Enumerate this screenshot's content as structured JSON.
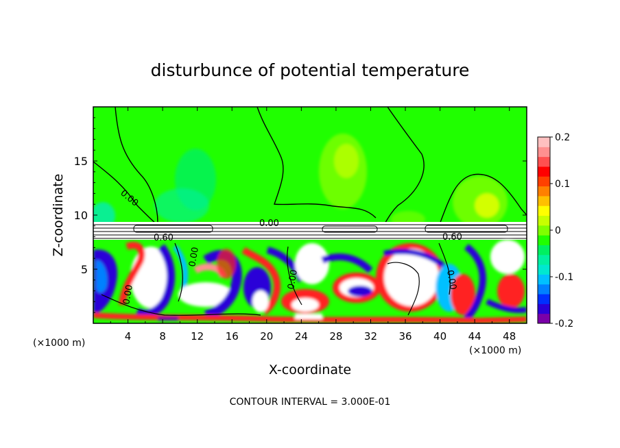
{
  "chart_data": {
    "type": "heatmap",
    "title": "disturbunce of potential temperature",
    "xlabel": "X-coordinate",
    "ylabel": "Z-coordinate",
    "x_unit": "(×1000 m)",
    "x_ticks": [
      "4",
      "8",
      "12",
      "16",
      "20",
      "24",
      "28",
      "32",
      "36",
      "40",
      "44",
      "48"
    ],
    "y_ticks": [
      "5",
      "10",
      "15"
    ],
    "xlim": [
      0,
      50
    ],
    "ylim": [
      0,
      20
    ],
    "colorbar": {
      "ticks": [
        "0.2",
        "0.1",
        "0",
        "-0.1",
        "-0.2"
      ],
      "range": [
        -0.2,
        0.2
      ],
      "colors": [
        "#7a00a8",
        "#2a00d8",
        "#0030ff",
        "#0080ff",
        "#00c0ff",
        "#00e8d0",
        "#00f0a0",
        "#00f060",
        "#20ff00",
        "#80ff00",
        "#c8ff00",
        "#ffff00",
        "#ffc000",
        "#ff8000",
        "#ff4000",
        "#ff0000",
        "#ff5050",
        "#ff9090",
        "#ffc0c0"
      ]
    },
    "contour_labels": [
      "0.00",
      "0.00",
      "0.00",
      "0.00",
      "0.00",
      "0.60",
      "0.60",
      "0.00"
    ],
    "contour_interval_text": "CONTOUR INTERVAL = 3.000E-01"
  },
  "colors": {
    "upper_field": "#20ff00",
    "warm": "#ff2020",
    "cold": "#2a00d8",
    "neutral": "#ffffff"
  }
}
